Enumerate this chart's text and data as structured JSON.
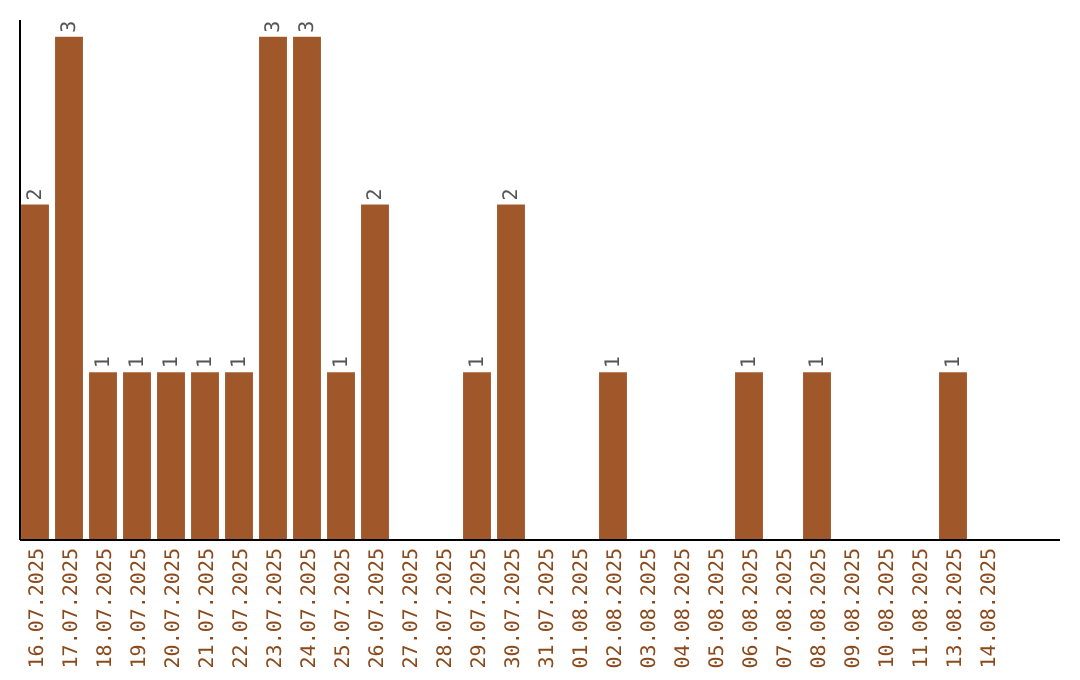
{
  "chart_data": {
    "type": "bar",
    "categories": [
      "16.07.2025",
      "17.07.2025",
      "18.07.2025",
      "19.07.2025",
      "20.07.2025",
      "21.07.2025",
      "22.07.2025",
      "23.07.2025",
      "24.07.2025",
      "25.07.2025",
      "26.07.2025",
      "27.07.2025",
      "28.07.2025",
      "29.07.2025",
      "30.07.2025",
      "31.07.2025",
      "01.08.2025",
      "02.08.2025",
      "03.08.2025",
      "04.08.2025",
      "05.08.2025",
      "06.08.2025",
      "07.08.2025",
      "08.08.2025",
      "09.08.2025",
      "10.08.2025",
      "11.08.2025",
      "13.08.2025",
      "14.08.2025"
    ],
    "values": [
      2,
      3,
      1,
      1,
      1,
      1,
      1,
      3,
      3,
      1,
      2,
      0,
      0,
      1,
      2,
      0,
      0,
      1,
      0,
      0,
      0,
      1,
      0,
      1,
      0,
      0,
      0,
      1,
      0
    ],
    "value_labels": [
      "2",
      "3",
      "1",
      "1",
      "1",
      "1",
      "1",
      "3",
      "3",
      "1",
      "2",
      null,
      null,
      "1",
      "2",
      null,
      null,
      "1",
      null,
      null,
      null,
      "1",
      null,
      "1",
      null,
      null,
      null,
      "1",
      null
    ],
    "color": "#a0572a",
    "ylim": [
      0,
      3.1
    ],
    "tick_labels": "x"
  }
}
